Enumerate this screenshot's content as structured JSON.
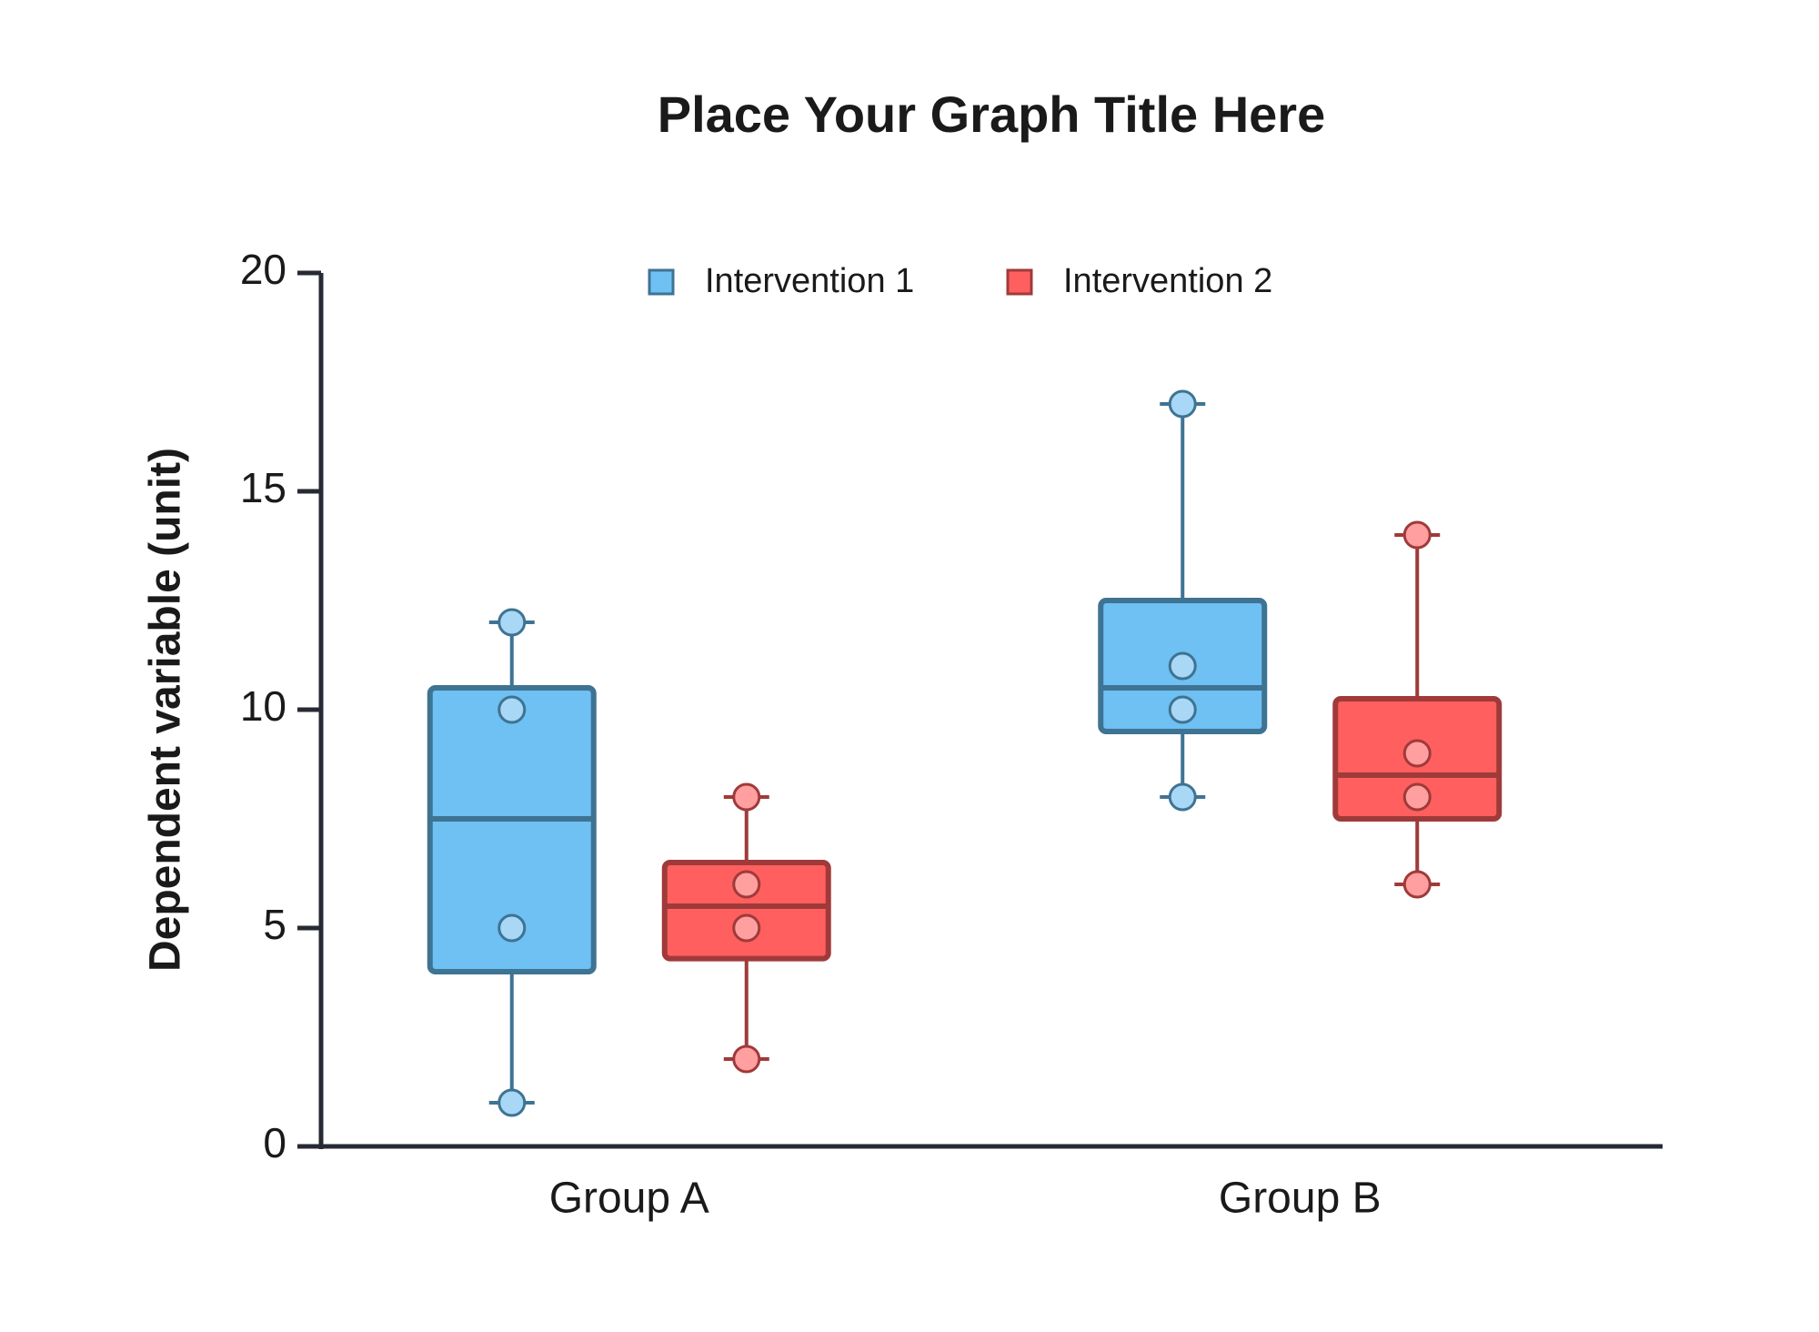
{
  "chart_data": {
    "type": "box",
    "title": "Place Your Graph Title Here",
    "y_label": "Dependent variable (unit)",
    "categories": [
      "Group A",
      "Group B"
    ],
    "ylim": [
      0,
      20
    ],
    "yticks": [
      0,
      5,
      10,
      15,
      20
    ],
    "legend_position": "top",
    "series": [
      {
        "name": "Intervention 1",
        "color": "#6ec1f2",
        "edge_color": "#3f7393",
        "point_color": "#a8d8f5",
        "stats": [
          {
            "min": 1,
            "q1": 4,
            "median": 7.5,
            "q3": 10.5,
            "max": 12
          },
          {
            "min": 8,
            "q1": 9.5,
            "median": 10.5,
            "q3": 12.5,
            "max": 17
          }
        ],
        "points": [
          [
            1,
            5,
            10,
            12
          ],
          [
            8,
            10,
            11,
            17
          ]
        ]
      },
      {
        "name": "Intervention 2",
        "color": "#ff5f5f",
        "edge_color": "#a03a3a",
        "point_color": "#ff9f9f",
        "stats": [
          {
            "min": 2,
            "q1": 4.3,
            "median": 5.5,
            "q3": 6.5,
            "max": 8
          },
          {
            "min": 6,
            "q1": 7.5,
            "median": 8.5,
            "q3": 10.25,
            "max": 14
          }
        ],
        "points": [
          [
            2,
            5,
            6,
            8
          ],
          [
            6,
            8,
            9,
            14
          ]
        ]
      }
    ]
  }
}
